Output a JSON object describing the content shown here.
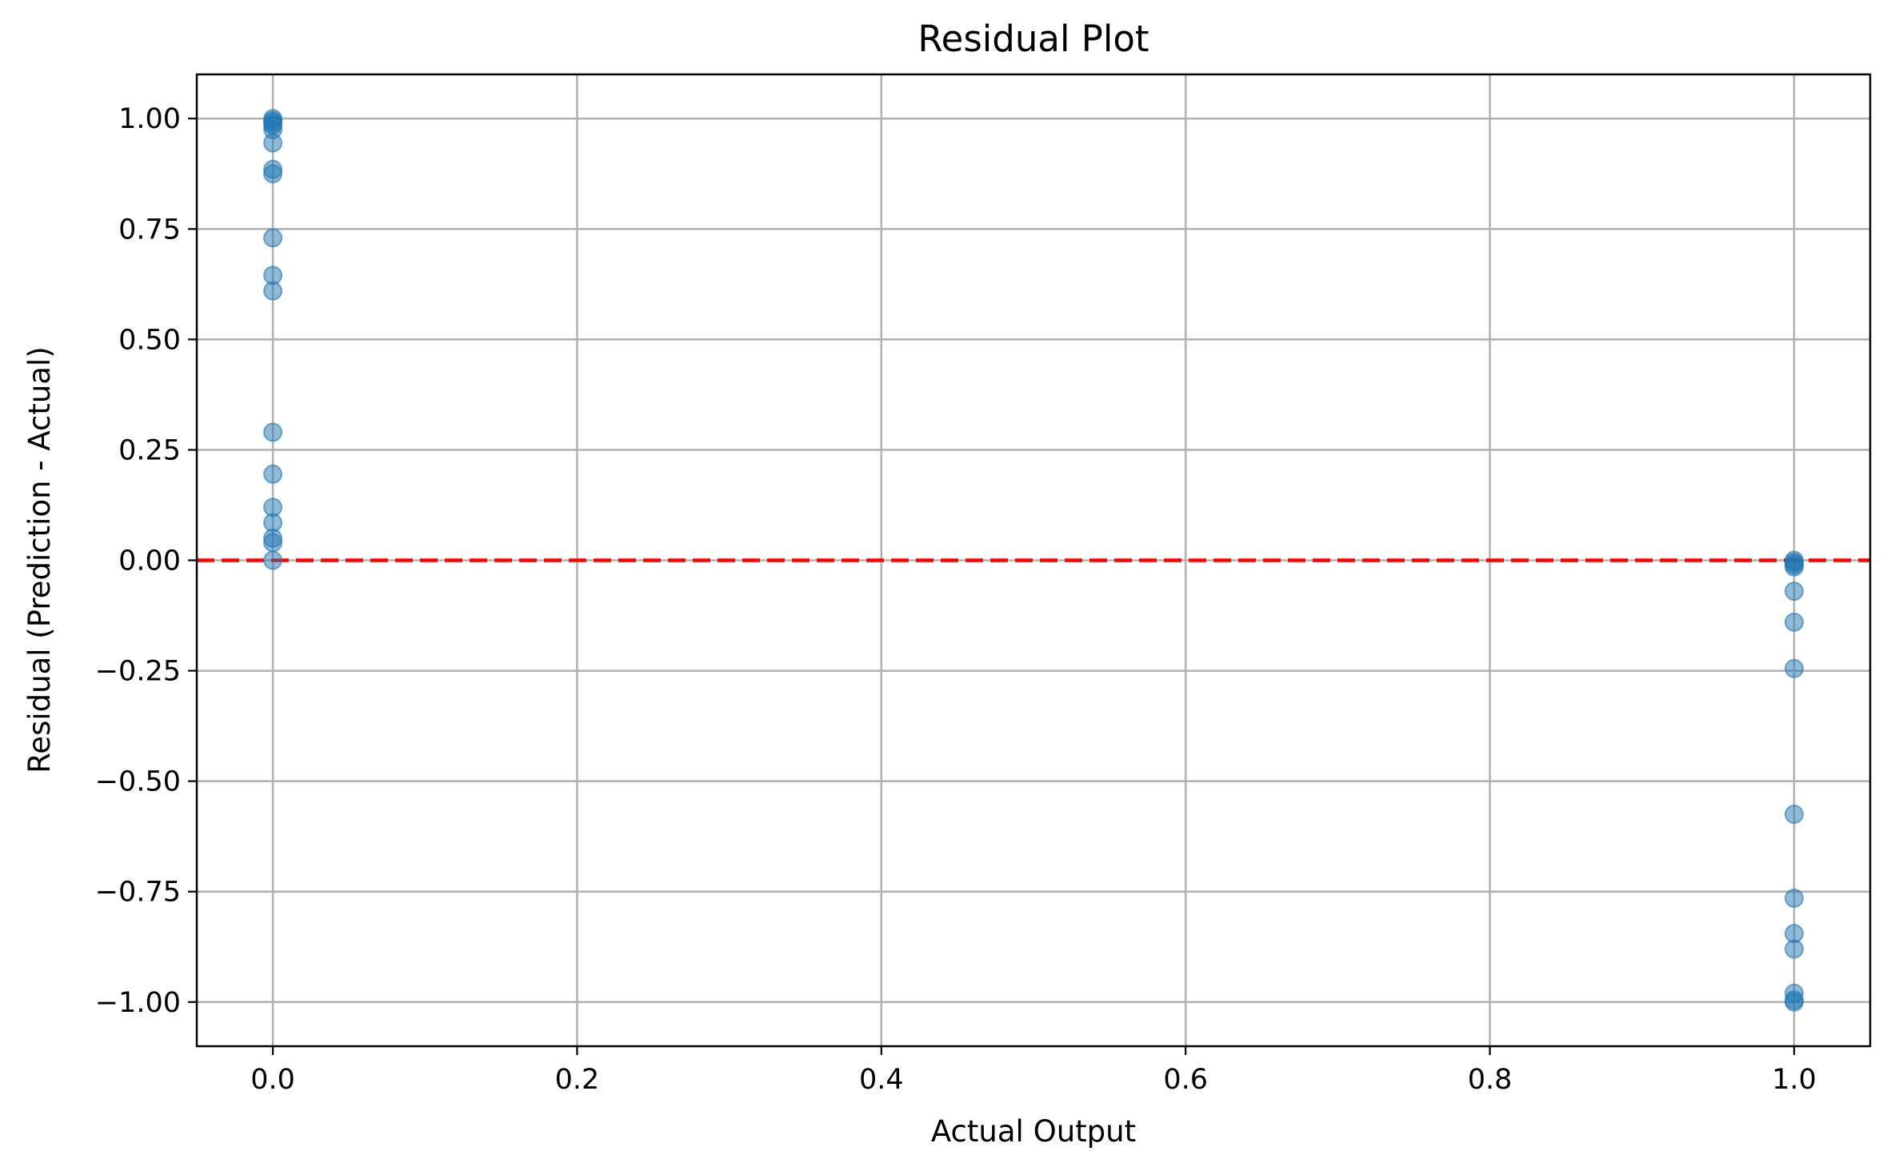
{
  "chart_data": {
    "type": "scatter",
    "title": "Residual Plot",
    "xlabel": "Actual Output",
    "ylabel": "Residual (Prediction - Actual)",
    "xlim": [
      -0.05,
      1.05
    ],
    "ylim": [
      -1.1,
      1.1
    ],
    "xticks": [
      0.0,
      0.2,
      0.4,
      0.6,
      0.8,
      1.0
    ],
    "xtick_labels": [
      "0.0",
      "0.2",
      "0.4",
      "0.6",
      "0.8",
      "1.0"
    ],
    "yticks": [
      1.0,
      0.75,
      0.5,
      0.25,
      0.0,
      -0.25,
      -0.5,
      -0.75,
      -1.0
    ],
    "ytick_labels": [
      "1.00",
      "0.75",
      "0.50",
      "0.25",
      "0.00",
      "−0.25",
      "−0.50",
      "−0.75",
      "−1.00"
    ],
    "grid": true,
    "reference_line": {
      "y": 0.0,
      "style": "dashed",
      "color": "#ff0000"
    },
    "marker_color": "#1f77b4",
    "marker_alpha": 0.5,
    "points": [
      {
        "x": 0.0,
        "y": 1.0
      },
      {
        "x": 0.0,
        "y": 0.995
      },
      {
        "x": 0.0,
        "y": 0.99
      },
      {
        "x": 0.0,
        "y": 0.985
      },
      {
        "x": 0.0,
        "y": 0.975
      },
      {
        "x": 0.0,
        "y": 0.945
      },
      {
        "x": 0.0,
        "y": 0.885
      },
      {
        "x": 0.0,
        "y": 0.875
      },
      {
        "x": 0.0,
        "y": 0.73
      },
      {
        "x": 0.0,
        "y": 0.645
      },
      {
        "x": 0.0,
        "y": 0.61
      },
      {
        "x": 0.0,
        "y": 0.29
      },
      {
        "x": 0.0,
        "y": 0.195
      },
      {
        "x": 0.0,
        "y": 0.12
      },
      {
        "x": 0.0,
        "y": 0.085
      },
      {
        "x": 0.0,
        "y": 0.05
      },
      {
        "x": 0.0,
        "y": 0.04
      },
      {
        "x": 0.0,
        "y": 0.0
      },
      {
        "x": 1.0,
        "y": 0.0
      },
      {
        "x": 1.0,
        "y": -0.005
      },
      {
        "x": 1.0,
        "y": -0.01
      },
      {
        "x": 1.0,
        "y": -0.015
      },
      {
        "x": 1.0,
        "y": -0.07
      },
      {
        "x": 1.0,
        "y": -0.14
      },
      {
        "x": 1.0,
        "y": -0.245
      },
      {
        "x": 1.0,
        "y": -0.575
      },
      {
        "x": 1.0,
        "y": -0.765
      },
      {
        "x": 1.0,
        "y": -0.845
      },
      {
        "x": 1.0,
        "y": -0.88
      },
      {
        "x": 1.0,
        "y": -0.98
      },
      {
        "x": 1.0,
        "y": -0.995
      },
      {
        "x": 1.0,
        "y": -1.0
      }
    ]
  }
}
